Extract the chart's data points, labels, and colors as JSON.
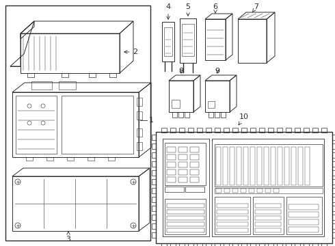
{
  "bg_color": "#ffffff",
  "line_color": "#2a2a2a",
  "lw": 0.7
}
